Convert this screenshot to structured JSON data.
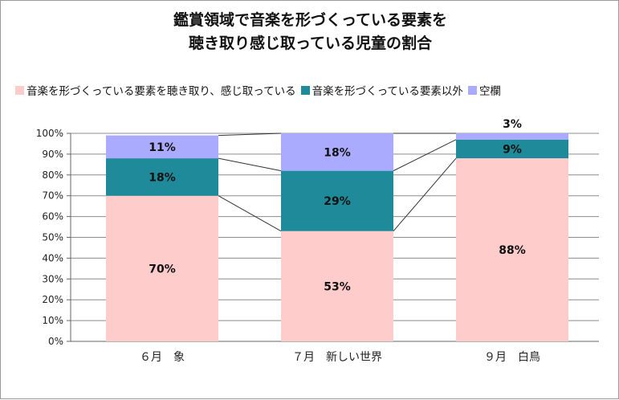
{
  "chart_data": {
    "type": "bar",
    "stacked": true,
    "percent": true,
    "title_lines": [
      "鑑賞領域で音楽を形づくっている要素を",
      "聴き取り感じ取っている児童の割合"
    ],
    "categories": [
      "６月　象",
      "７月　新しい世界",
      "９月　白鳥"
    ],
    "series": [
      {
        "name": "音楽を形づくっている要素を聴き取り、感じ取っている",
        "color": "#ffcccc",
        "values": [
          70,
          53,
          88
        ],
        "labels": [
          "70%",
          "53%",
          "88%"
        ]
      },
      {
        "name": "音楽を形づくっている要素以外",
        "color": "#1f8a99",
        "values": [
          18,
          29,
          9
        ],
        "labels": [
          "18%",
          "29%",
          "9%"
        ]
      },
      {
        "name": "空欄",
        "color": "#aaaaff",
        "values": [
          11,
          18,
          3
        ],
        "labels": [
          "11%",
          "18%",
          "3%"
        ]
      }
    ],
    "y_ticks": [
      "0%",
      "10%",
      "20%",
      "30%",
      "40%",
      "50%",
      "60%",
      "70%",
      "80%",
      "90%",
      "100%"
    ],
    "ylim": [
      0,
      100
    ],
    "legend_position": "top",
    "series_lines": true,
    "grid": true
  }
}
